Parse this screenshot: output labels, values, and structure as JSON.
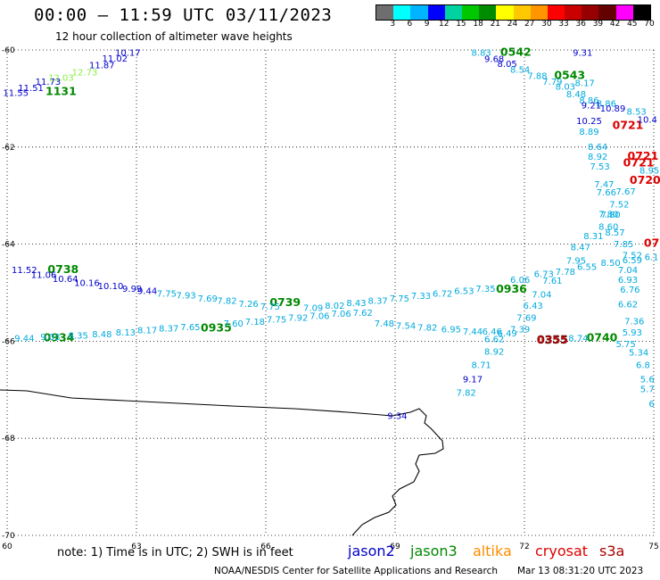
{
  "header": {
    "title": "00:00 – 11:59 UTC 03/11/2023",
    "subtitle": "12 hour collection of altimeter wave heights"
  },
  "colorbar": {
    "labels": [
      "3",
      "6",
      "9",
      "12",
      "15",
      "18",
      "21",
      "24",
      "27",
      "30",
      "33",
      "36",
      "39",
      "42",
      "45",
      "70",
      "(ft)"
    ],
    "colors": [
      "#6e6e6e",
      "#00ffff",
      "#00b4ff",
      "#0000ff",
      "#00d2a0",
      "#00c800",
      "#008c00",
      "#ffff00",
      "#ffc800",
      "#ff9600",
      "#ff0000",
      "#c80000",
      "#960000",
      "#640000",
      "#ff00ff",
      "#000000"
    ]
  },
  "footer": {
    "note": "note: 1) Time is in UTC; 2) SWH is in feet",
    "satellites": [
      {
        "name": "jason2",
        "color": "#0000cc"
      },
      {
        "name": "jason3",
        "color": "#008800"
      },
      {
        "name": "altika",
        "color": "#ff8c00"
      },
      {
        "name": "cryosat",
        "color": "#dd0000"
      },
      {
        "name": "s3a",
        "color": "#aa0000"
      }
    ],
    "credit": "NOAA/NESDIS Center for Satellite Applications and Research",
    "generated": "Mar 13 08:31:20 UTC 2023"
  },
  "chart_data": {
    "type": "scatter",
    "x_axis": {
      "ticks": [
        "60",
        "63",
        "66",
        "69",
        "72",
        "75"
      ],
      "range": [
        60,
        75
      ]
    },
    "y_axis": {
      "ticks": [
        "-60",
        "-62",
        "-64",
        "-66",
        "-68",
        "-70"
      ],
      "range": [
        -70,
        -60
      ]
    },
    "grid": true,
    "labels": [
      {
        "t": "11.55",
        "x": 60.2,
        "y": -60.95,
        "c": "#0000cc"
      },
      {
        "t": "11.51",
        "x": 60.55,
        "y": -60.85,
        "c": "#0000cc"
      },
      {
        "t": "11.73",
        "x": 60.95,
        "y": -60.72,
        "c": "#0000cc"
      },
      {
        "t": "1131",
        "x": 61.25,
        "y": -60.93,
        "c": "#008800",
        "time": true
      },
      {
        "t": "12.03",
        "x": 61.25,
        "y": -60.63,
        "c": "#88ee44"
      },
      {
        "t": "12.73",
        "x": 61.8,
        "y": -60.52,
        "c": "#88ee44"
      },
      {
        "t": "11.87",
        "x": 62.2,
        "y": -60.38,
        "c": "#0000cc"
      },
      {
        "t": "11.02",
        "x": 62.5,
        "y": -60.24,
        "c": "#0000cc"
      },
      {
        "t": "10.17",
        "x": 62.8,
        "y": -60.12,
        "c": "#0000cc"
      },
      {
        "t": "8.83",
        "x": 71.0,
        "y": -60.12,
        "c": "#00aadd"
      },
      {
        "t": "0542",
        "x": 71.8,
        "y": -60.12,
        "c": "#008800",
        "time": true
      },
      {
        "t": "9.68",
        "x": 71.3,
        "y": -60.25,
        "c": "#0000cc"
      },
      {
        "t": "8.05",
        "x": 71.6,
        "y": -60.35,
        "c": "#0000cc"
      },
      {
        "t": "8.54",
        "x": 71.9,
        "y": -60.47,
        "c": "#00aadd"
      },
      {
        "t": "7.88",
        "x": 72.3,
        "y": -60.6,
        "c": "#00aadd"
      },
      {
        "t": "7.79",
        "x": 72.65,
        "y": -60.72,
        "c": "#00aadd"
      },
      {
        "t": "0543",
        "x": 73.05,
        "y": -60.6,
        "c": "#008800",
        "time": true
      },
      {
        "t": "8.03",
        "x": 72.95,
        "y": -60.82,
        "c": "#00aadd"
      },
      {
        "t": "8.17",
        "x": 73.4,
        "y": -60.74,
        "c": "#00aadd"
      },
      {
        "t": "9.31",
        "x": 73.35,
        "y": -60.12,
        "c": "#0000cc"
      },
      {
        "t": "8.48",
        "x": 73.2,
        "y": -60.97,
        "c": "#00aadd"
      },
      {
        "t": "8.86",
        "x": 73.5,
        "y": -61.1,
        "c": "#00aadd"
      },
      {
        "t": "8.86",
        "x": 73.9,
        "y": -61.17,
        "c": "#00aadd"
      },
      {
        "t": "9.21",
        "x": 73.55,
        "y": -61.2,
        "c": "#0000cc"
      },
      {
        "t": "10.89",
        "x": 74.05,
        "y": -61.27,
        "c": "#0000cc"
      },
      {
        "t": "8.53",
        "x": 74.6,
        "y": -61.33,
        "c": "#00aadd"
      },
      {
        "t": "10.25",
        "x": 73.5,
        "y": -61.53,
        "c": "#0000cc"
      },
      {
        "t": "0721",
        "x": 74.4,
        "y": -61.63,
        "c": "#dd0000",
        "time": true
      },
      {
        "t": "10.4",
        "x": 74.85,
        "y": -61.5,
        "c": "#0000cc"
      },
      {
        "t": "8.89",
        "x": 73.5,
        "y": -61.75,
        "c": "#00aadd"
      },
      {
        "t": "8.64",
        "x": 73.7,
        "y": -62.06,
        "c": "#00aadd"
      },
      {
        "t": "8.92",
        "x": 73.7,
        "y": -62.26,
        "c": "#00aadd"
      },
      {
        "t": "0721",
        "x": 74.75,
        "y": -62.26,
        "c": "#dd0000",
        "time": true
      },
      {
        "t": "7.53",
        "x": 73.75,
        "y": -62.46,
        "c": "#00aadd"
      },
      {
        "t": "0721",
        "x": 74.65,
        "y": -62.4,
        "c": "#dd0000",
        "time": true
      },
      {
        "t": "8.95",
        "x": 74.9,
        "y": -62.55,
        "c": "#00aadd"
      },
      {
        "t": "0720",
        "x": 74.8,
        "y": -62.76,
        "c": "#dd0000",
        "time": true
      },
      {
        "t": "7.47",
        "x": 73.85,
        "y": -62.83,
        "c": "#00aadd"
      },
      {
        "t": "7.66",
        "x": 73.9,
        "y": -63.0,
        "c": "#00aadd"
      },
      {
        "t": "7.67",
        "x": 74.35,
        "y": -62.98,
        "c": "#00aadd"
      },
      {
        "t": "7.52",
        "x": 74.2,
        "y": -63.24,
        "c": "#00aadd"
      },
      {
        "t": "7.80",
        "x": 73.95,
        "y": -63.45,
        "c": "#00aadd"
      },
      {
        "t": "7.80",
        "x": 74.0,
        "y": -63.46,
        "c": "#00aadd"
      },
      {
        "t": "8.60",
        "x": 73.95,
        "y": -63.7,
        "c": "#00aadd"
      },
      {
        "t": "8.31",
        "x": 73.6,
        "y": -63.9,
        "c": "#00aadd"
      },
      {
        "t": "8.57",
        "x": 74.1,
        "y": -63.82,
        "c": "#00aadd"
      },
      {
        "t": "7.85",
        "x": 74.3,
        "y": -64.06,
        "c": "#00aadd"
      },
      {
        "t": "8.47",
        "x": 73.3,
        "y": -64.13,
        "c": "#00aadd"
      },
      {
        "t": "07",
        "x": 74.95,
        "y": -64.05,
        "c": "#dd0000",
        "time": true
      },
      {
        "t": "7.52",
        "x": 74.5,
        "y": -64.29,
        "c": "#00aadd"
      },
      {
        "t": "6.1",
        "x": 74.95,
        "y": -64.33,
        "c": "#00aadd"
      },
      {
        "t": "7.95",
        "x": 73.2,
        "y": -64.4,
        "c": "#00aadd"
      },
      {
        "t": "8.50",
        "x": 74.0,
        "y": -64.45,
        "c": "#00aadd"
      },
      {
        "t": "6.59",
        "x": 74.5,
        "y": -64.39,
        "c": "#00aadd"
      },
      {
        "t": "6.55",
        "x": 73.45,
        "y": -64.53,
        "c": "#00aadd"
      },
      {
        "t": "7.78",
        "x": 72.95,
        "y": -64.63,
        "c": "#00aadd"
      },
      {
        "t": "6.73",
        "x": 72.45,
        "y": -64.68,
        "c": "#00aadd"
      },
      {
        "t": "6.06",
        "x": 71.9,
        "y": -64.8,
        "c": "#00aadd"
      },
      {
        "t": "7.61",
        "x": 72.65,
        "y": -64.82,
        "c": "#00aadd"
      },
      {
        "t": "7.04",
        "x": 74.4,
        "y": -64.6,
        "c": "#00aadd"
      },
      {
        "t": "6.93",
        "x": 74.4,
        "y": -64.8,
        "c": "#00aadd"
      },
      {
        "t": "6.76",
        "x": 74.45,
        "y": -65.0,
        "c": "#00aadd"
      },
      {
        "t": "6.62",
        "x": 74.4,
        "y": -65.3,
        "c": "#00aadd"
      },
      {
        "t": "7.04",
        "x": 72.4,
        "y": -65.1,
        "c": "#00aadd"
      },
      {
        "t": "6.43",
        "x": 72.2,
        "y": -65.33,
        "c": "#00aadd"
      },
      {
        "t": "7.69",
        "x": 72.05,
        "y": -65.58,
        "c": "#00aadd"
      },
      {
        "t": "7.39",
        "x": 71.9,
        "y": -65.82,
        "c": "#00aadd"
      },
      {
        "t": "7.36",
        "x": 74.55,
        "y": -65.65,
        "c": "#00aadd"
      },
      {
        "t": "5.93",
        "x": 74.5,
        "y": -65.88,
        "c": "#00aadd"
      },
      {
        "t": "5.75",
        "x": 74.35,
        "y": -66.12,
        "c": "#00aadd"
      },
      {
        "t": "5.34",
        "x": 74.65,
        "y": -66.3,
        "c": "#00aadd"
      },
      {
        "t": "6.8",
        "x": 74.75,
        "y": -66.55,
        "c": "#00aadd"
      },
      {
        "t": "5.6",
        "x": 74.85,
        "y": -66.85,
        "c": "#00aadd"
      },
      {
        "t": "5.7",
        "x": 74.85,
        "y": -67.05,
        "c": "#00aadd"
      },
      {
        "t": "6",
        "x": 74.95,
        "y": -67.35,
        "c": "#00aadd"
      },
      {
        "t": "11.52",
        "x": 60.4,
        "y": -64.6,
        "c": "#0000cc"
      },
      {
        "t": "0738",
        "x": 61.3,
        "y": -64.6,
        "c": "#008800",
        "time": true
      },
      {
        "t": "11.06",
        "x": 60.85,
        "y": -64.7,
        "c": "#0000cc"
      },
      {
        "t": "10.64",
        "x": 61.35,
        "y": -64.78,
        "c": "#0000cc"
      },
      {
        "t": "10.16",
        "x": 61.85,
        "y": -64.86,
        "c": "#0000cc"
      },
      {
        "t": "10.10",
        "x": 62.4,
        "y": -64.93,
        "c": "#0000cc"
      },
      {
        "t": "9.99",
        "x": 62.9,
        "y": -64.98,
        "c": "#0000cc"
      },
      {
        "t": "9.44",
        "x": 63.25,
        "y": -65.03,
        "c": "#0000cc"
      },
      {
        "t": "7.75",
        "x": 63.7,
        "y": -65.08,
        "c": "#00aadd"
      },
      {
        "t": "7.93",
        "x": 64.15,
        "y": -65.12,
        "c": "#00aadd"
      },
      {
        "t": "7.69",
        "x": 64.65,
        "y": -65.18,
        "c": "#00aadd"
      },
      {
        "t": "7.82",
        "x": 65.1,
        "y": -65.23,
        "c": "#00aadd"
      },
      {
        "t": "7.26",
        "x": 65.6,
        "y": -65.29,
        "c": "#00aadd"
      },
      {
        "t": "0739",
        "x": 66.45,
        "y": -65.28,
        "c": "#008800",
        "time": true
      },
      {
        "t": "7.75",
        "x": 66.1,
        "y": -65.35,
        "c": "#00aadd"
      },
      {
        "t": "7.09",
        "x": 67.1,
        "y": -65.38,
        "c": "#00aadd"
      },
      {
        "t": "8.02",
        "x": 67.6,
        "y": -65.33,
        "c": "#00aadd"
      },
      {
        "t": "8.43",
        "x": 68.1,
        "y": -65.28,
        "c": "#00aadd"
      },
      {
        "t": "8.37",
        "x": 68.6,
        "y": -65.23,
        "c": "#00aadd"
      },
      {
        "t": "7.75",
        "x": 69.1,
        "y": -65.18,
        "c": "#00aadd"
      },
      {
        "t": "7.33",
        "x": 69.6,
        "y": -65.13,
        "c": "#00aadd"
      },
      {
        "t": "6.72",
        "x": 70.1,
        "y": -65.08,
        "c": "#00aadd"
      },
      {
        "t": "6.53",
        "x": 70.6,
        "y": -65.03,
        "c": "#00aadd"
      },
      {
        "t": "7.35",
        "x": 71.1,
        "y": -64.98,
        "c": "#00aadd"
      },
      {
        "t": "0936",
        "x": 71.7,
        "y": -65.0,
        "c": "#008800",
        "time": true
      },
      {
        "t": "9.44",
        "x": 60.4,
        "y": -66.0,
        "c": "#00aadd"
      },
      {
        "t": "0934",
        "x": 61.2,
        "y": -66.0,
        "c": "#008800",
        "time": true
      },
      {
        "t": "9.03",
        "x": 61.0,
        "y": -65.97,
        "c": "#00aadd"
      },
      {
        "t": "8.35",
        "x": 61.65,
        "y": -65.95,
        "c": "#00aadd"
      },
      {
        "t": "8.48",
        "x": 62.2,
        "y": -65.92,
        "c": "#00aadd"
      },
      {
        "t": "8.13",
        "x": 62.75,
        "y": -65.88,
        "c": "#00aadd"
      },
      {
        "t": "8.17",
        "x": 63.25,
        "y": -65.84,
        "c": "#00aadd"
      },
      {
        "t": "8.37",
        "x": 63.75,
        "y": -65.8,
        "c": "#00aadd"
      },
      {
        "t": "7.65",
        "x": 64.25,
        "y": -65.77,
        "c": "#00aadd"
      },
      {
        "t": "0935",
        "x": 64.85,
        "y": -65.8,
        "c": "#008800",
        "time": true
      },
      {
        "t": "7.60",
        "x": 65.25,
        "y": -65.7,
        "c": "#00aadd"
      },
      {
        "t": "7.18",
        "x": 65.75,
        "y": -65.66,
        "c": "#00aadd"
      },
      {
        "t": "7.75",
        "x": 66.25,
        "y": -65.62,
        "c": "#00aadd"
      },
      {
        "t": "7.92",
        "x": 66.75,
        "y": -65.58,
        "c": "#00aadd"
      },
      {
        "t": "7.06",
        "x": 67.25,
        "y": -65.54,
        "c": "#00aadd"
      },
      {
        "t": "7.06",
        "x": 67.75,
        "y": -65.5,
        "c": "#00aadd"
      },
      {
        "t": "7.62",
        "x": 68.25,
        "y": -65.48,
        "c": "#00aadd"
      },
      {
        "t": "7.48",
        "x": 68.75,
        "y": -65.7,
        "c": "#00aadd"
      },
      {
        "t": "7.54",
        "x": 69.25,
        "y": -65.74,
        "c": "#00aadd"
      },
      {
        "t": "7.82",
        "x": 69.75,
        "y": -65.78,
        "c": "#00aadd"
      },
      {
        "t": "6.95",
        "x": 70.3,
        "y": -65.82,
        "c": "#00aadd"
      },
      {
        "t": "7.44",
        "x": 70.8,
        "y": -65.86,
        "c": "#00aadd"
      },
      {
        "t": "6.46",
        "x": 71.25,
        "y": -65.86,
        "c": "#00aadd"
      },
      {
        "t": "6.49",
        "x": 71.6,
        "y": -65.9,
        "c": "#00aadd"
      },
      {
        "t": "6.62",
        "x": 71.3,
        "y": -66.02,
        "c": "#00aadd"
      },
      {
        "t": "0355",
        "x": 72.65,
        "y": -66.05,
        "c": "#dd0000",
        "time": true,
        "outline": true
      },
      {
        "t": "8.74",
        "x": 73.25,
        "y": -66.0,
        "c": "#00aadd"
      },
      {
        "t": "0740",
        "x": 73.8,
        "y": -66.0,
        "c": "#008800",
        "time": true
      },
      {
        "t": "8.92",
        "x": 71.3,
        "y": -66.28,
        "c": "#00aadd"
      },
      {
        "t": "8.71",
        "x": 71.0,
        "y": -66.55,
        "c": "#00aadd"
      },
      {
        "t": "9.17",
        "x": 70.8,
        "y": -66.85,
        "c": "#0000cc"
      },
      {
        "t": "7.82",
        "x": 70.65,
        "y": -67.12,
        "c": "#00aadd"
      },
      {
        "t": "9.34",
        "x": 69.05,
        "y": -67.6,
        "c": "#0000cc"
      }
    ]
  }
}
